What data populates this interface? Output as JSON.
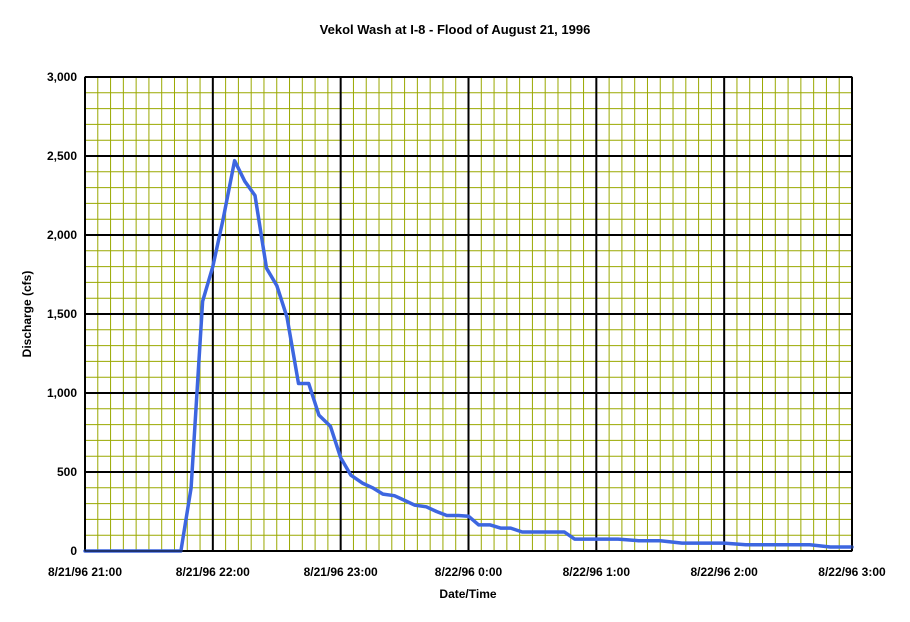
{
  "chart_data": {
    "type": "line",
    "title": "Vekol Wash at I-8 - Flood of August 21, 1996",
    "xlabel": "Date/Time",
    "ylabel": "Discharge (cfs)",
    "xlim": [
      0,
      6
    ],
    "ylim": [
      0,
      3000
    ],
    "x_tick_values": [
      0,
      1,
      2,
      3,
      4,
      5,
      6
    ],
    "x_tick_labels": [
      "8/21/96 21:00",
      "8/21/96 22:00",
      "8/21/96 23:00",
      "8/22/96 0:00",
      "8/22/96 1:00",
      "8/22/96 2:00",
      "8/22/96 3:00"
    ],
    "y_tick_values": [
      0,
      500,
      1000,
      1500,
      2000,
      2500,
      3000
    ],
    "y_tick_labels": [
      "0",
      "500",
      "1,000",
      "1,500",
      "2,000",
      "2,500",
      "3,000"
    ],
    "grid": true,
    "legend": "none",
    "colors": {
      "plot_background": "#ffffff",
      "minor_grid": "#9aa800",
      "major_grid": "#000000",
      "series": "#3d66e0"
    },
    "series": [
      {
        "x": [
          0,
          0.75,
          0.83,
          0.92,
          1.0,
          1.08,
          1.17,
          1.25,
          1.33,
          1.42,
          1.5,
          1.58,
          1.67,
          1.75,
          1.83,
          1.92,
          2.0,
          2.08,
          2.17,
          2.25,
          2.33,
          2.42,
          2.5,
          2.58,
          2.67,
          2.75,
          2.83,
          2.92,
          3.0,
          3.08,
          3.17,
          3.25,
          3.33,
          3.42,
          3.5,
          3.58,
          3.67,
          3.75,
          3.83,
          3.92,
          4.0,
          4.17,
          4.33,
          4.5,
          4.67,
          4.83,
          5.0,
          5.17,
          5.33,
          5.5,
          5.67,
          5.83,
          6.0
        ],
        "y": [
          0,
          0,
          400,
          1580,
          1800,
          2100,
          2470,
          2340,
          2250,
          1790,
          1680,
          1480,
          1060,
          1060,
          860,
          790,
          590,
          480,
          430,
          400,
          360,
          350,
          320,
          290,
          280,
          250,
          225,
          225,
          220,
          165,
          165,
          145,
          145,
          120,
          120,
          120,
          120,
          120,
          75,
          75,
          75,
          75,
          65,
          65,
          50,
          50,
          50,
          40,
          40,
          40,
          40,
          25,
          25
        ]
      }
    ]
  }
}
